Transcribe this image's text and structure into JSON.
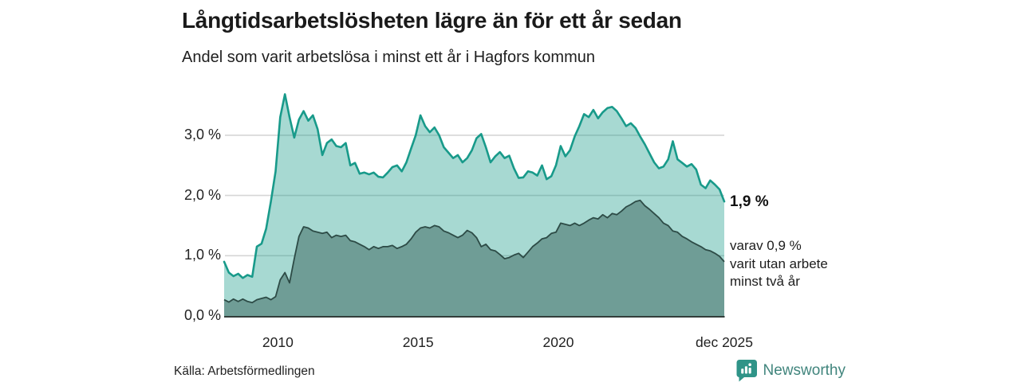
{
  "header": {
    "title": "Långtidsarbetslösheten lägre än för ett år sedan",
    "subtitle": "Andel som varit arbetslösa i minst ett år i Hagfors kommun"
  },
  "chart_data": {
    "type": "area",
    "title": "Långtidsarbetslösheten lägre än för ett år sedan",
    "subtitle": "Andel som varit arbetslösa i minst ett år i Hagfors kommun",
    "x_unit": "year (monthly data, sampled every 2 months)",
    "x_start": 2008.083,
    "x_step": 0.16667,
    "n_points": 108,
    "xlim": [
      2008.083,
      2025.917
    ],
    "ylim": [
      0,
      3.85
    ],
    "grid": true,
    "legend_position": "right-annotation",
    "yticks": [
      {
        "label": "0,0 %",
        "value": 0
      },
      {
        "label": "1,0 %",
        "value": 1
      },
      {
        "label": "2,0 %",
        "value": 2
      },
      {
        "label": "3,0 %",
        "value": 3
      }
    ],
    "xticks": [
      {
        "label": "2010",
        "value": 2010
      },
      {
        "label": "2015",
        "value": 2015
      },
      {
        "label": "2020",
        "value": 2020
      },
      {
        "label": "dec 2025",
        "value": 2025.917
      }
    ],
    "series": [
      {
        "name": "Arbetslösa minst ett år",
        "end_value_label": "1,9 %",
        "line_color": "#189a8a",
        "fill_color": "rgba(24,154,138,0.38)",
        "values": [
          0.9,
          0.72,
          0.66,
          0.7,
          0.63,
          0.68,
          0.65,
          1.15,
          1.2,
          1.45,
          1.9,
          2.4,
          3.3,
          3.68,
          3.3,
          2.96,
          3.26,
          3.4,
          3.24,
          3.33,
          3.1,
          2.67,
          2.87,
          2.93,
          2.82,
          2.8,
          2.87,
          2.5,
          2.54,
          2.36,
          2.38,
          2.35,
          2.38,
          2.31,
          2.3,
          2.38,
          2.47,
          2.5,
          2.4,
          2.55,
          2.78,
          3.0,
          3.33,
          3.15,
          3.05,
          3.13,
          3.0,
          2.8,
          2.71,
          2.62,
          2.67,
          2.55,
          2.62,
          2.75,
          2.95,
          3.02,
          2.8,
          2.55,
          2.65,
          2.72,
          2.62,
          2.66,
          2.45,
          2.29,
          2.3,
          2.4,
          2.38,
          2.33,
          2.5,
          2.27,
          2.32,
          2.5,
          2.82,
          2.65,
          2.75,
          2.98,
          3.15,
          3.35,
          3.3,
          3.42,
          3.28,
          3.38,
          3.45,
          3.47,
          3.4,
          3.28,
          3.15,
          3.2,
          3.12,
          2.98,
          2.85,
          2.7,
          2.55,
          2.45,
          2.48,
          2.6,
          2.9,
          2.6,
          2.54,
          2.48,
          2.52,
          2.43,
          2.18,
          2.12,
          2.25,
          2.18,
          2.1,
          1.9
        ]
      },
      {
        "name": "varav arbetslösa minst två år",
        "end_value_label": "0,9 %",
        "line_color": "#2d4b46",
        "fill_color": "#6f9d96",
        "values": [
          0.27,
          0.23,
          0.28,
          0.24,
          0.28,
          0.24,
          0.22,
          0.27,
          0.29,
          0.31,
          0.27,
          0.32,
          0.6,
          0.72,
          0.55,
          0.95,
          1.32,
          1.48,
          1.46,
          1.41,
          1.39,
          1.37,
          1.39,
          1.3,
          1.34,
          1.32,
          1.34,
          1.25,
          1.23,
          1.19,
          1.15,
          1.1,
          1.15,
          1.12,
          1.15,
          1.15,
          1.17,
          1.12,
          1.15,
          1.19,
          1.28,
          1.39,
          1.46,
          1.48,
          1.46,
          1.5,
          1.48,
          1.41,
          1.38,
          1.34,
          1.3,
          1.34,
          1.42,
          1.38,
          1.3,
          1.15,
          1.19,
          1.1,
          1.08,
          1.02,
          0.95,
          0.97,
          1.01,
          1.04,
          0.97,
          1.06,
          1.15,
          1.21,
          1.28,
          1.3,
          1.37,
          1.39,
          1.54,
          1.52,
          1.5,
          1.54,
          1.5,
          1.54,
          1.59,
          1.63,
          1.61,
          1.68,
          1.63,
          1.7,
          1.68,
          1.74,
          1.81,
          1.85,
          1.9,
          1.92,
          1.83,
          1.77,
          1.7,
          1.63,
          1.54,
          1.5,
          1.41,
          1.39,
          1.32,
          1.28,
          1.23,
          1.19,
          1.15,
          1.1,
          1.08,
          1.04,
          0.99,
          0.9
        ]
      }
    ]
  },
  "annotations": {
    "end_value": "1,9 %",
    "end_note_line1": "varav 0,9 %",
    "end_note_line2": "varit utan arbete",
    "end_note_line3": "minst två år"
  },
  "footer": {
    "source": "Källa: Arbetsförmedlingen",
    "brand": "Newsworthy"
  },
  "colors": {
    "line_total": "#189a8a",
    "fill_total": "rgba(24,154,138,0.38)",
    "line_twoyear": "#2d4b46",
    "fill_twoyear": "#6f9d96",
    "gridline": "#d6d6d6",
    "axis": "#333d3b",
    "brand_teal": "#2f9488",
    "brand_text": "#41857d"
  }
}
